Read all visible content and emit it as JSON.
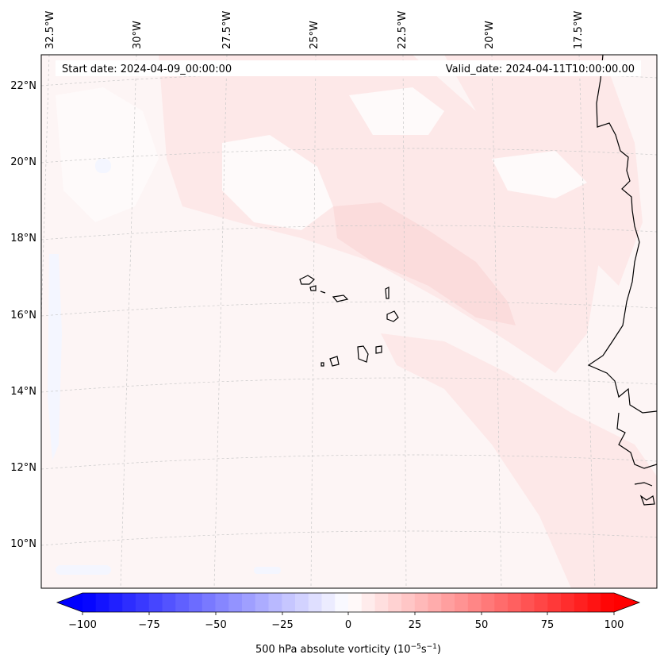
{
  "header": {
    "start_date": "Start date: 2024-04-09_00:00:00",
    "valid_date": "Valid_date: 2024-04-11T10:00:00.00"
  },
  "map": {
    "longitude_labels": [
      "32.5°W",
      "30°W",
      "27.5°W",
      "25°W",
      "22.5°W",
      "20°W",
      "17.5°W"
    ],
    "latitude_labels": [
      "22°N",
      "20°N",
      "18°N",
      "16°N",
      "14°N",
      "12°N",
      "10°N"
    ],
    "field_colors": {
      "background": "#fdf5f5",
      "light_red": "#fde8e8",
      "medium_red": "#fbdcdc",
      "near_white": "#fefafa",
      "light_blue": "#f4f6ff"
    },
    "coastline_color": "#000000",
    "gridline_color": "#c8c8c8"
  },
  "colorbar": {
    "label_prefix": "500 hPa absolute vorticity (10",
    "label_exp1": "−5",
    "label_mid": "s",
    "label_exp2": "−1",
    "label_suffix": ")",
    "tick_labels": [
      "−100",
      "−75",
      "−50",
      "−25",
      "0",
      "25",
      "50",
      "75",
      "100"
    ],
    "min_color": "#0000ff",
    "mid_color": "#ffffff",
    "max_color": "#ff0000",
    "extend": "both"
  }
}
